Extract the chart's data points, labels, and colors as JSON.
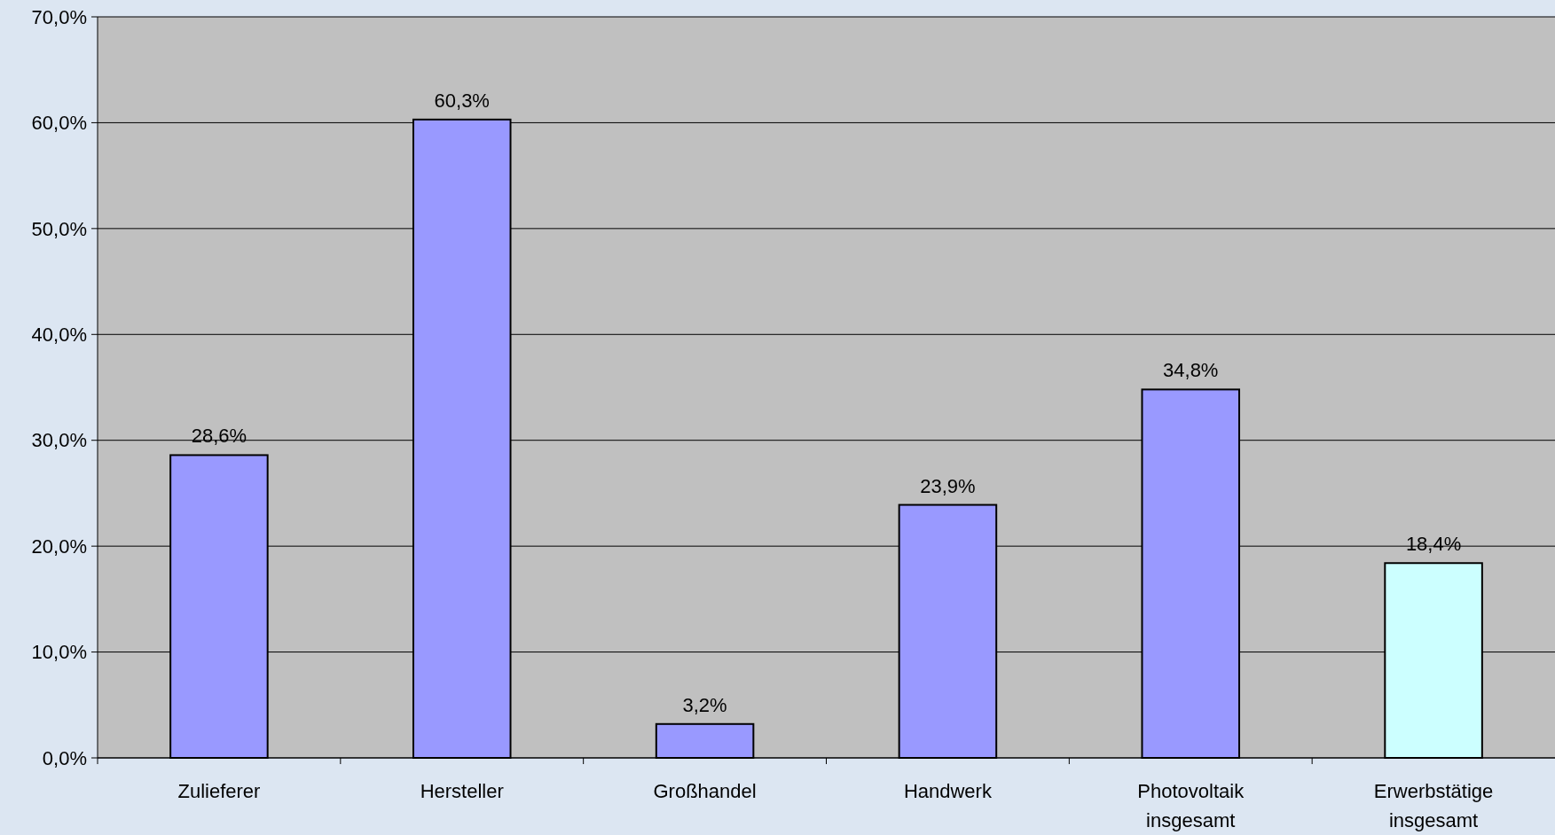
{
  "chart_data": {
    "type": "bar",
    "categories": [
      "Zulieferer",
      "Hersteller",
      "Großhandel",
      "Handwerk",
      "Photovoltaik insgesamt",
      "Erwerbstätige insgesamt"
    ],
    "values": [
      28.6,
      60.3,
      3.2,
      23.9,
      34.8,
      18.4
    ],
    "colors": [
      "#9999ff",
      "#9999ff",
      "#9999ff",
      "#9999ff",
      "#9999ff",
      "#ccffff"
    ],
    "value_labels": [
      "28,6%",
      "60,3%",
      "3,2%",
      "23,9%",
      "34,8%",
      "18,4%"
    ],
    "ylim": [
      0,
      70
    ],
    "yticks": [
      {
        "value": 0,
        "label": "0,0%"
      },
      {
        "value": 10,
        "label": "10,0%"
      },
      {
        "value": 20,
        "label": "20,0%"
      },
      {
        "value": 30,
        "label": "30,0%"
      },
      {
        "value": 40,
        "label": "40,0%"
      },
      {
        "value": 50,
        "label": "50,0%"
      },
      {
        "value": 60,
        "label": "60,0%"
      },
      {
        "value": 70,
        "label": "70,0%"
      }
    ],
    "grid": "y"
  }
}
